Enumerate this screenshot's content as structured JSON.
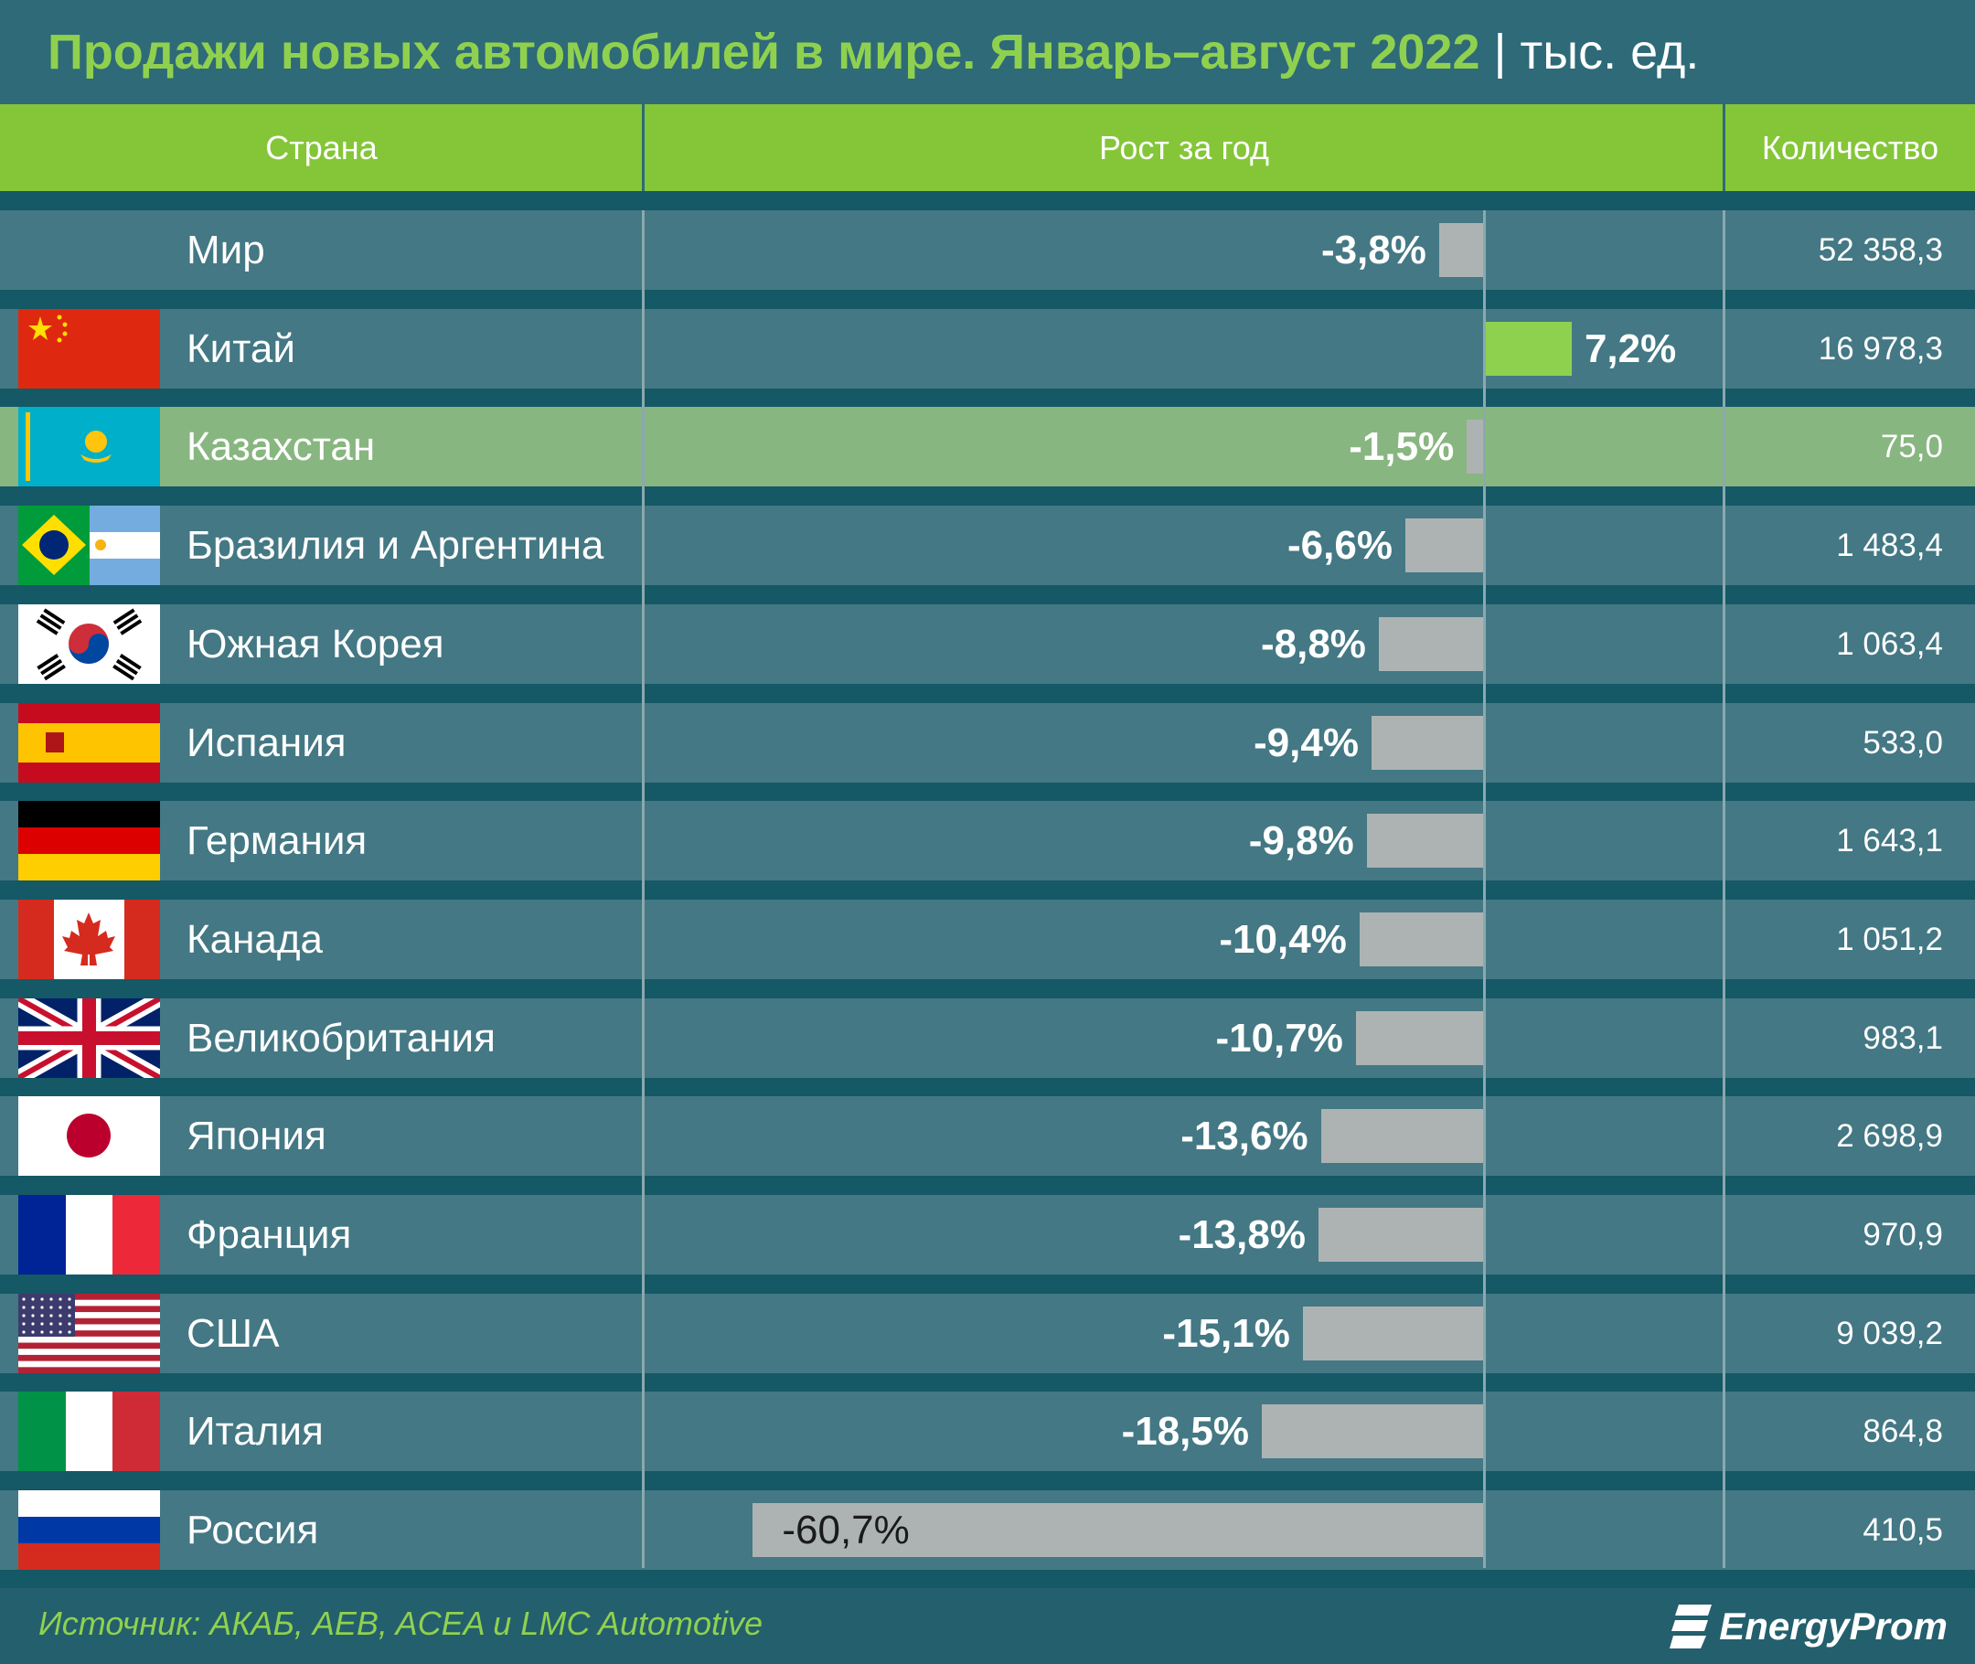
{
  "title": {
    "main": "Продажи новых автомобилей в мире. Январь–август 2022",
    "separator": " | ",
    "unit": "тыс. ед."
  },
  "header": {
    "country": "Страна",
    "growth": "Рост за год",
    "count": "Количество"
  },
  "colors": {
    "title": "#8fd14f",
    "header_bg": "#84c638",
    "row_bg": "#437884",
    "highlight_bg": "#88b680",
    "negative_bar": "#adb3b3",
    "positive_bar": "#8dd14f"
  },
  "chart_data": {
    "type": "bar",
    "orientation": "horizontal",
    "categories": [
      "Мир",
      "Китай",
      "Казахстан",
      "Бразилия и Аргентина",
      "Южная Корея",
      "Испания",
      "Германия",
      "Канада",
      "Великобритания",
      "Япония",
      "Франция",
      "США",
      "Италия",
      "Россия"
    ],
    "growth_labels": [
      "-3,8%",
      "7,2%",
      "-1,5%",
      "-6,6%",
      "-8,8%",
      "-9,4%",
      "-9,8%",
      "-10,4%",
      "-10,7%",
      "-13,6%",
      "-13,8%",
      "-15,1%",
      "-18,5%",
      "-60,7%"
    ],
    "values": [
      -3.8,
      7.2,
      -1.5,
      -6.6,
      -8.8,
      -9.4,
      -9.8,
      -10.4,
      -10.7,
      -13.6,
      -13.8,
      -15.1,
      -18.5,
      -60.7
    ],
    "counts": [
      "52 358,3",
      "16 978,3",
      "75,0",
      "1 483,4",
      "1 063,4",
      "533,0",
      "1 643,1",
      "1 051,2",
      "983,1",
      "2 698,9",
      "970,9",
      "9 039,2",
      "864,8",
      "410,5"
    ],
    "flags": [
      "none",
      "china-flag",
      "kazakhstan-flag",
      "brazil-argentina-flag",
      "south-korea-flag",
      "spain-flag",
      "germany-flag",
      "canada-flag",
      "uk-flag",
      "japan-flag",
      "france-flag",
      "usa-flag",
      "italy-flag",
      "russia-flag"
    ],
    "highlighted": "Казахстан",
    "xlim": [
      -60.7,
      7.2
    ]
  },
  "footer": {
    "source": "Источник: АКАБ, AEB, ACEA и LMC Automotive",
    "logo": "EnergyProm"
  }
}
